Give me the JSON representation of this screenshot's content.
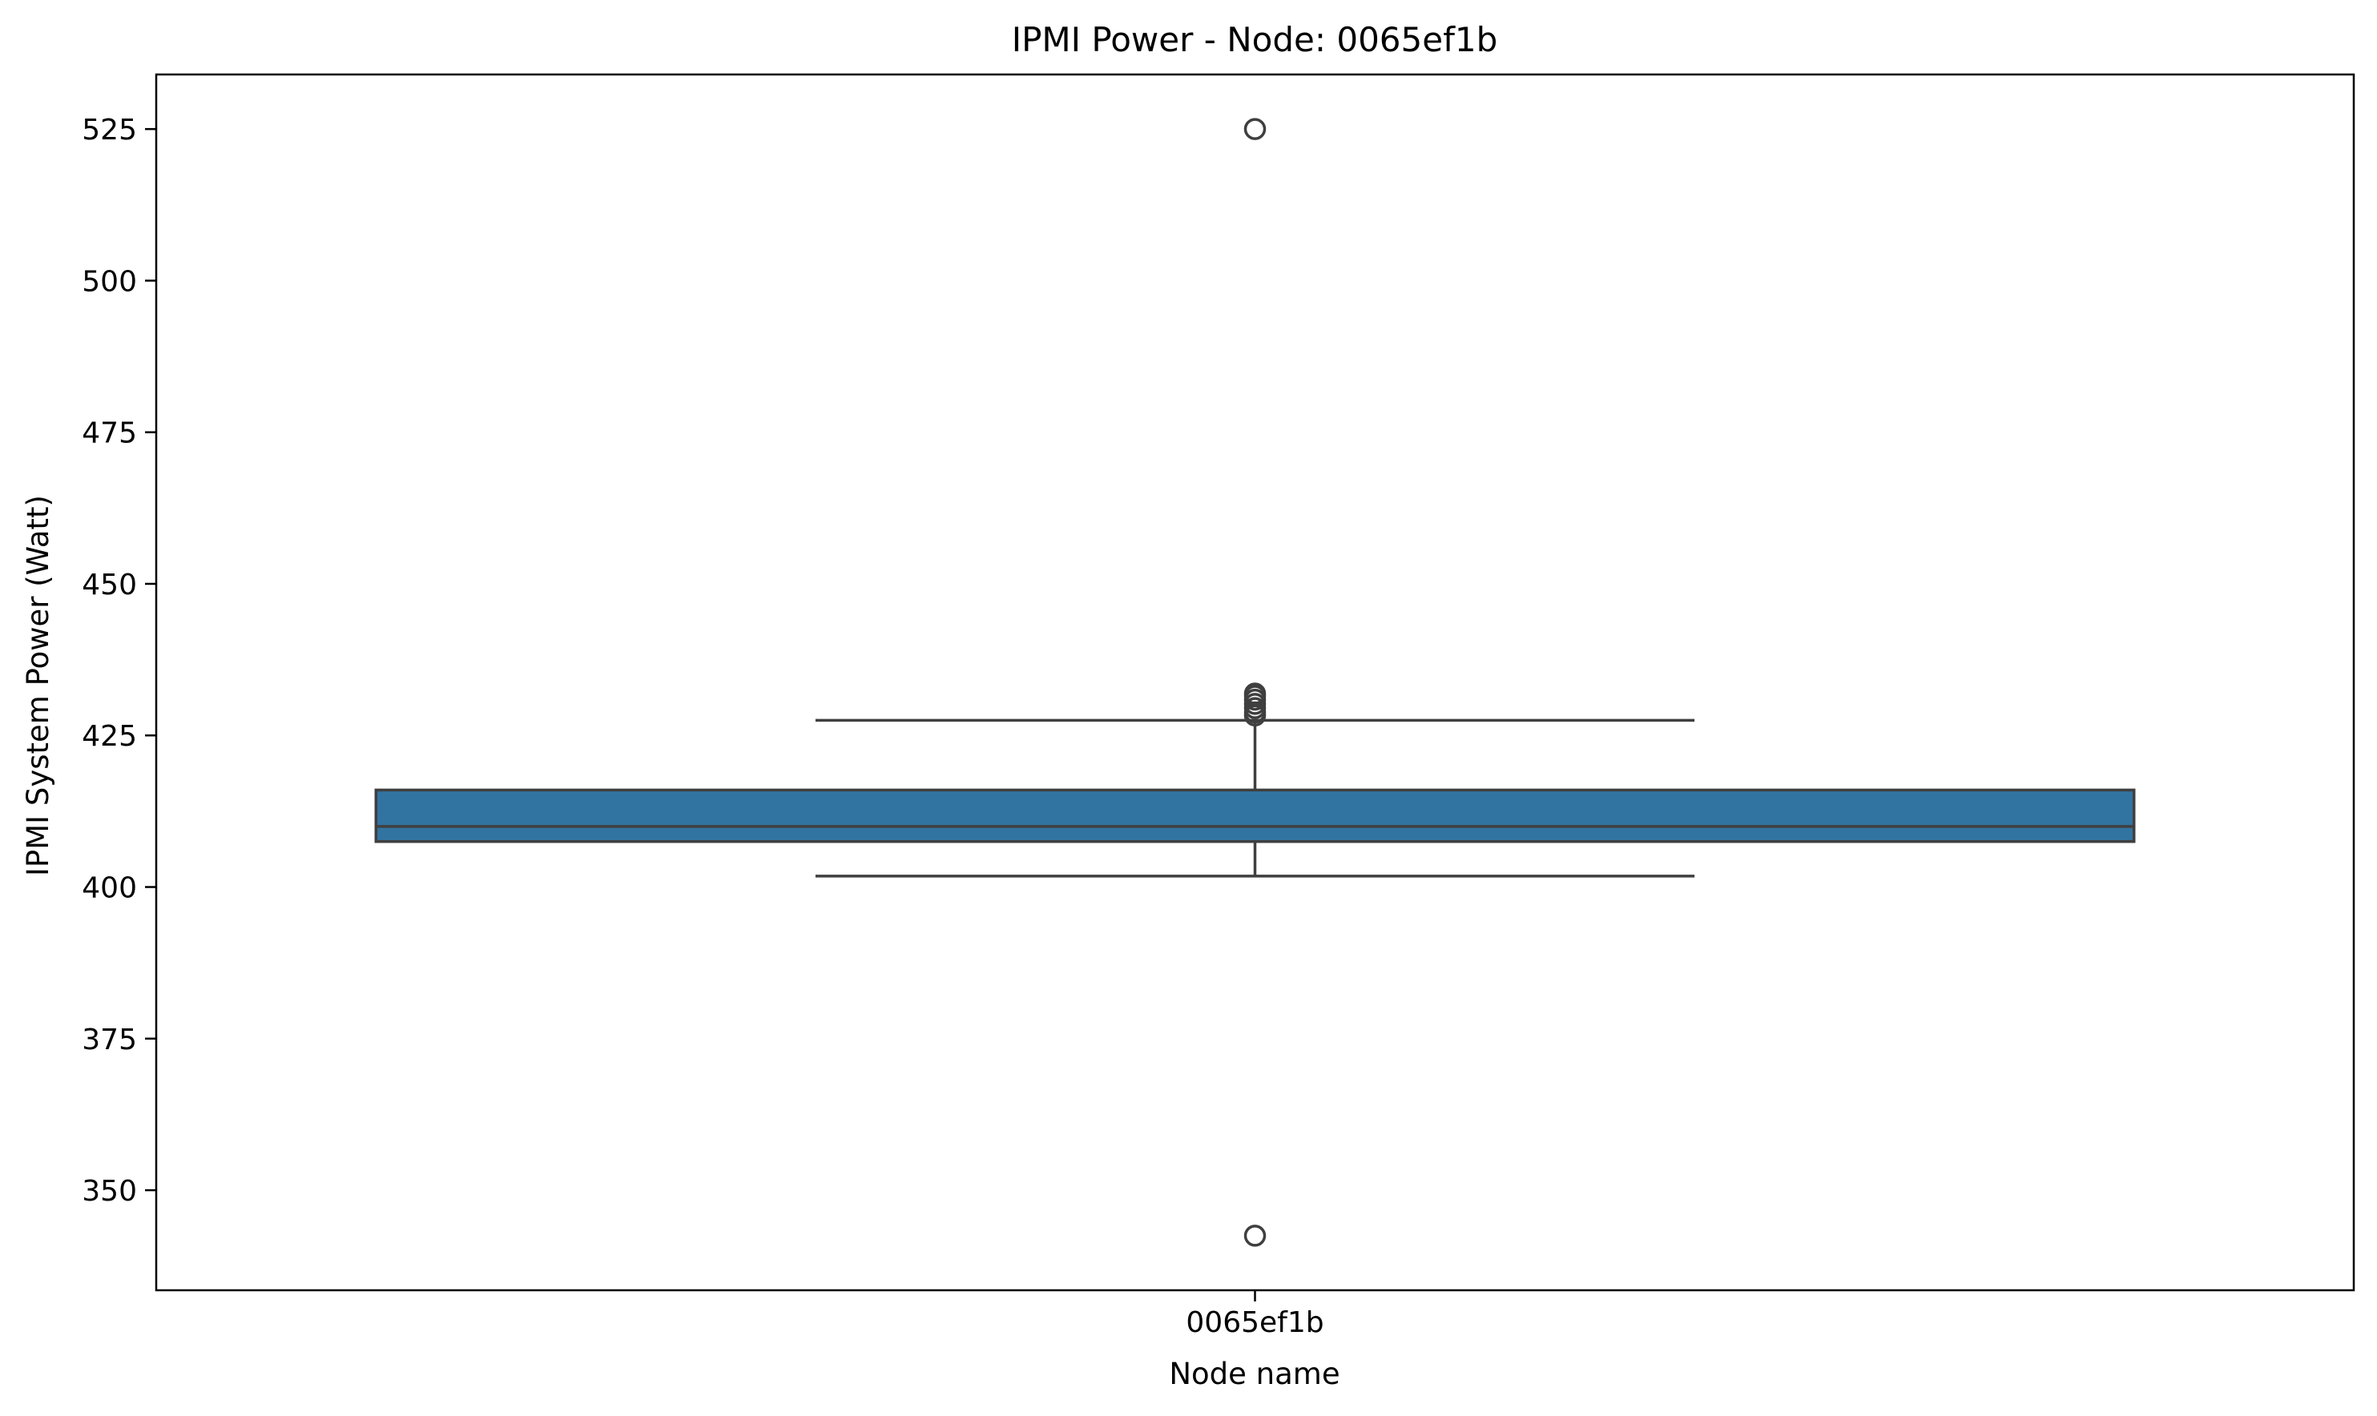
{
  "chart_data": {
    "type": "box",
    "title": "IPMI Power - Node: 0065ef1b",
    "xlabel": "Node name",
    "ylabel": "IPMI System Power (Watt)",
    "categories": [
      "0065ef1b"
    ],
    "ylim": [
      333.5,
      534
    ],
    "yticks": [
      350,
      375,
      400,
      425,
      450,
      475,
      500,
      525
    ],
    "grid": false,
    "colors": {
      "box_fill": "#3274a1",
      "box_edge": "#3f3f3f"
    },
    "boxes": [
      {
        "category": "0065ef1b",
        "whisker_low": 401.8,
        "q1": 407.5,
        "median": 410.0,
        "q3": 416.0,
        "whisker_high": 427.5,
        "outliers": [
          342.5,
          428.3,
          428.8,
          429.5,
          430.2,
          430.9,
          431.5,
          431.9,
          525.0
        ]
      }
    ]
  }
}
